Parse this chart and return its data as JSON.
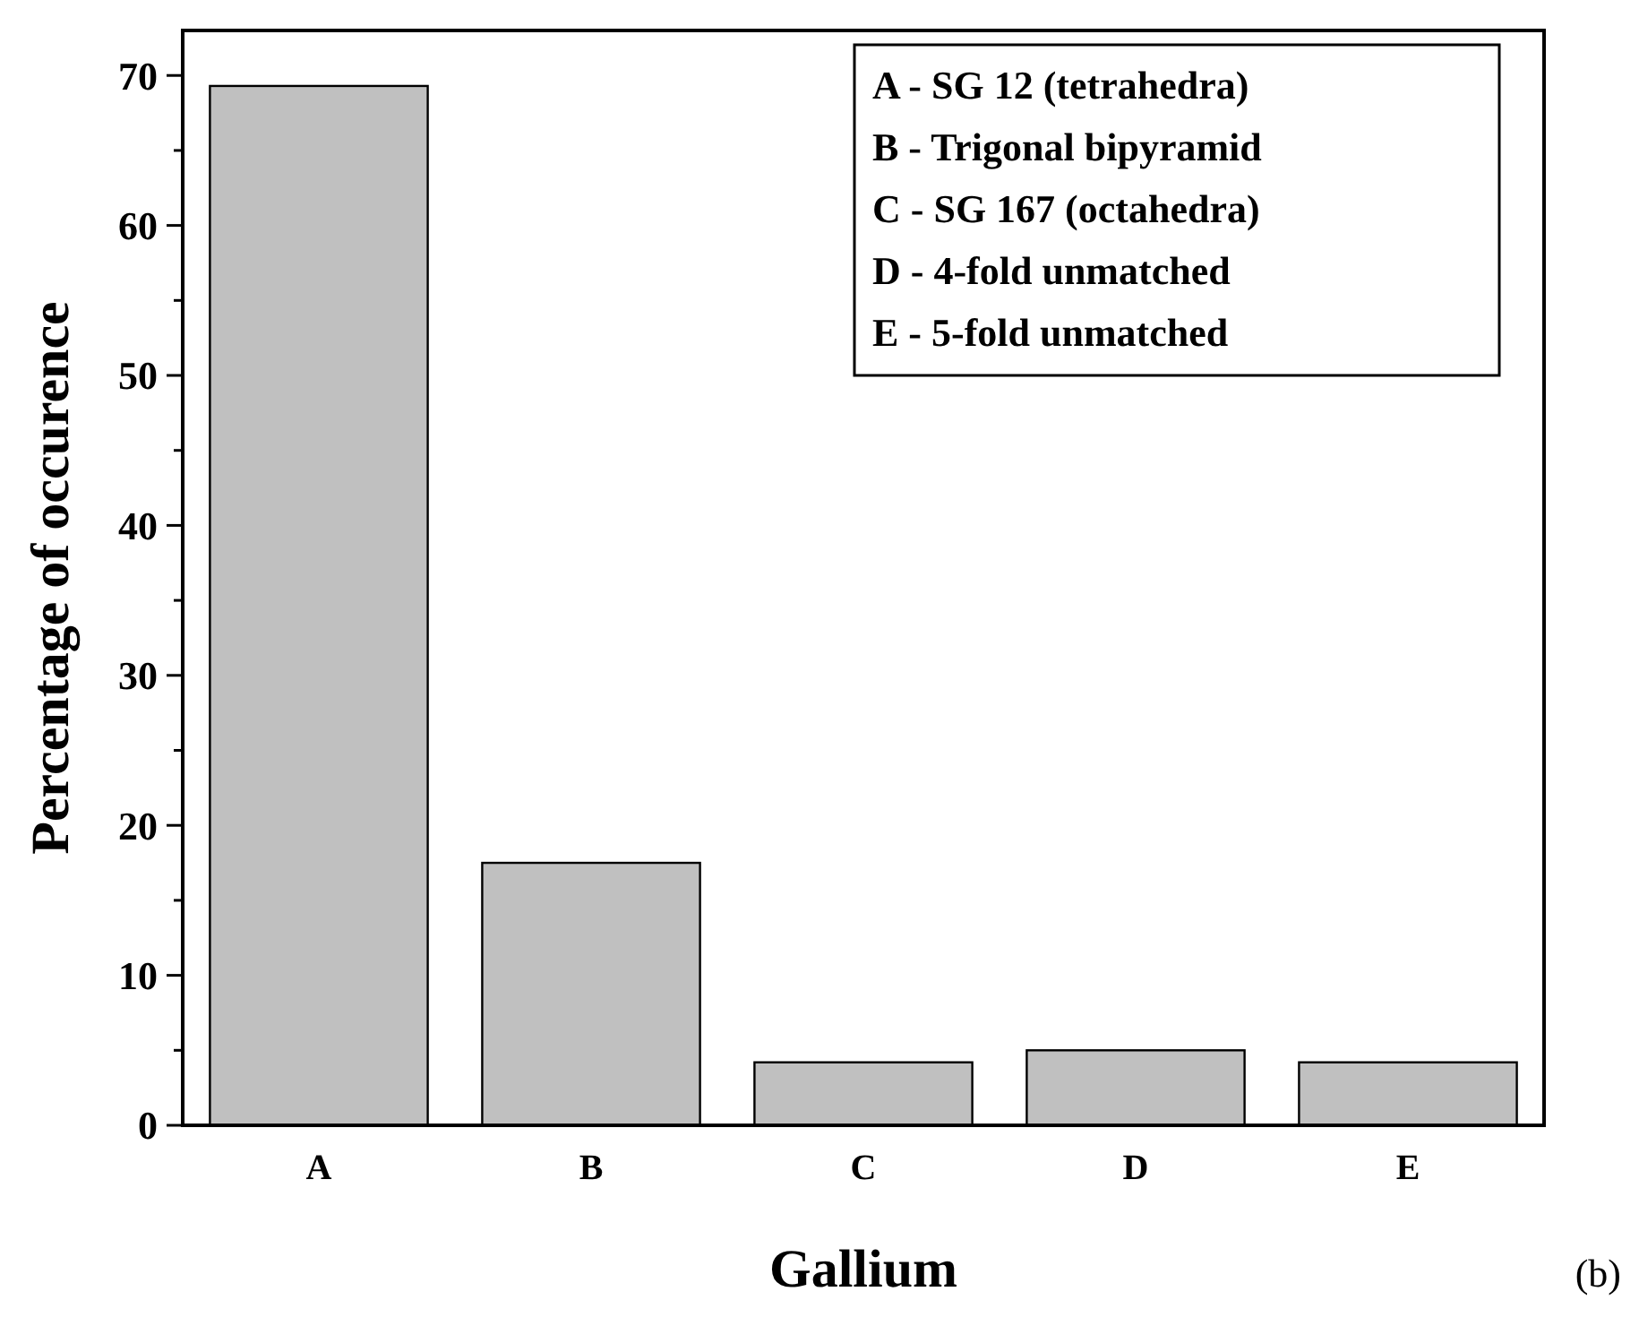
{
  "chart_data": {
    "type": "bar",
    "xlabel": "Gallium",
    "ylabel": "Percentage of occurence",
    "categories": [
      "A",
      "B",
      "C",
      "D",
      "E"
    ],
    "values": [
      69.3,
      17.5,
      4.2,
      5.0,
      4.2
    ],
    "color": "#c0c0c0",
    "ylim": [
      0,
      73
    ],
    "yticks": [
      0,
      {
        "value": 5,
        "label": null
      },
      10,
      {
        "value": 15,
        "label": null
      },
      20,
      {
        "value": 25,
        "label": null
      },
      30,
      {
        "value": 35,
        "label": null
      },
      40,
      {
        "value": 45,
        "label": null
      },
      50,
      {
        "value": 55,
        "label": null
      },
      60,
      {
        "value": 65,
        "label": null
      },
      70
    ],
    "annotations": [
      "A - SG 12 (tetrahedra)",
      "B - Trigonal bipyramid",
      "C - SG 167 (octahedra)",
      "D - 4-fold unmatched",
      "E - 5-fold unmatched",
      "(b)"
    ]
  }
}
